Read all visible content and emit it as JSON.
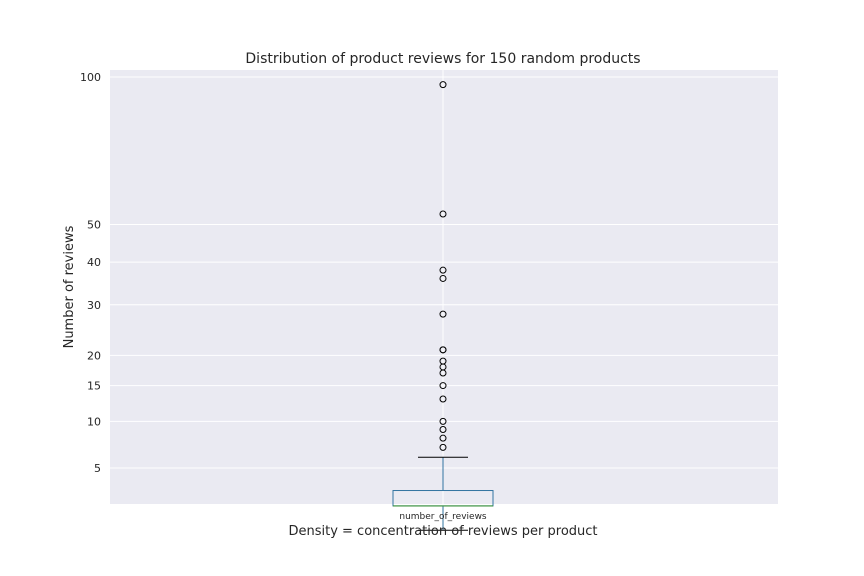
{
  "chart_data": {
    "type": "box",
    "title": "Distribution of product reviews for 150 random products",
    "xlabel": "Density = concentration of reviews per product",
    "ylabel": "Number of reviews",
    "categories": [
      "number_of_reviews"
    ],
    "y_ticks": [
      5,
      10,
      15,
      20,
      30,
      40,
      50,
      100
    ],
    "ylim": [
      1,
      100
    ],
    "grid": true,
    "box": {
      "q1": 2.2,
      "median": 2.2,
      "q3": 3.2,
      "whisker_low": 1,
      "whisker_high": 6,
      "outliers": [
        97,
        53,
        38,
        36,
        28,
        21,
        21,
        19,
        18,
        17,
        15,
        13,
        10,
        9,
        8,
        7
      ]
    },
    "colors": {
      "background": "#eaeaf2",
      "grid": "#ffffff",
      "box": "#3274a1",
      "median": "#3a923a",
      "whisker": "#3274a1",
      "cap": "#000000",
      "outlier": "#000000"
    }
  }
}
